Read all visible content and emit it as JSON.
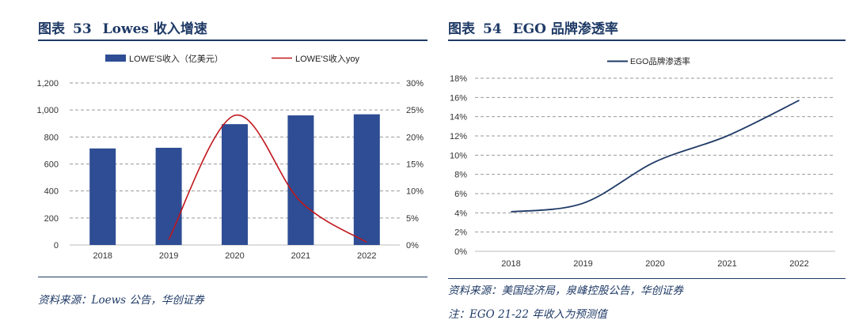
{
  "panels": {
    "left": {
      "label": "图表",
      "number": "53",
      "title": "Lowes 收入增速",
      "source": "资料来源：Loews 公告，华创证券"
    },
    "right": {
      "label": "图表",
      "number": "54",
      "title": "EGO 品牌渗透率",
      "source": "资料来源：美国经济局，泉峰控股公告，华创证券",
      "note": "注：EGO 21-22 年收入为预测值"
    }
  },
  "colors": {
    "bar": "#2e4d94",
    "yoy_line": "#c0161b",
    "penetration_line": "#1f3a66",
    "grid": "#9a9a9a",
    "title": "#1f3a66"
  },
  "chart_data": [
    {
      "type": "bar",
      "title": "Lowes 收入增速",
      "categories": [
        "2018",
        "2019",
        "2020",
        "2021",
        "2022"
      ],
      "series": [
        {
          "name": "LOWE'S收入（亿美元）",
          "kind": "bar",
          "axis": "left",
          "values": [
            715,
            720,
            895,
            960,
            968
          ]
        },
        {
          "name": "LOWE'S收入yoy",
          "kind": "line",
          "axis": "right",
          "values": [
            null,
            1,
            24,
            8,
            0.5
          ]
        }
      ],
      "ylim_left": [
        0,
        1200
      ],
      "yticks_left": [
        0,
        200,
        400,
        600,
        800,
        1000,
        1200
      ],
      "ytick_labels_left": [
        "0",
        "200",
        "400",
        "600",
        "800",
        "1,000",
        "1,200"
      ],
      "ylim_right": [
        0,
        30
      ],
      "yticks_right": [
        0,
        5,
        10,
        15,
        20,
        25,
        30
      ],
      "ytick_labels_right": [
        "0%",
        "5%",
        "10%",
        "15%",
        "20%",
        "25%",
        "30%"
      ],
      "grid": true,
      "legend": "top-center"
    },
    {
      "type": "line",
      "title": "EGO 品牌渗透率",
      "categories": [
        "2018",
        "2019",
        "2020",
        "2021",
        "2022"
      ],
      "series": [
        {
          "name": "EGO品牌渗透率",
          "values": [
            4.1,
            5.0,
            9.3,
            12.0,
            15.7
          ]
        }
      ],
      "ylim": [
        0,
        18
      ],
      "yticks": [
        0,
        2,
        4,
        6,
        8,
        10,
        12,
        14,
        16,
        18
      ],
      "ytick_labels": [
        "0%",
        "2%",
        "4%",
        "6%",
        "8%",
        "10%",
        "12%",
        "14%",
        "16%",
        "18%"
      ],
      "grid": true,
      "legend": "top-left"
    }
  ]
}
